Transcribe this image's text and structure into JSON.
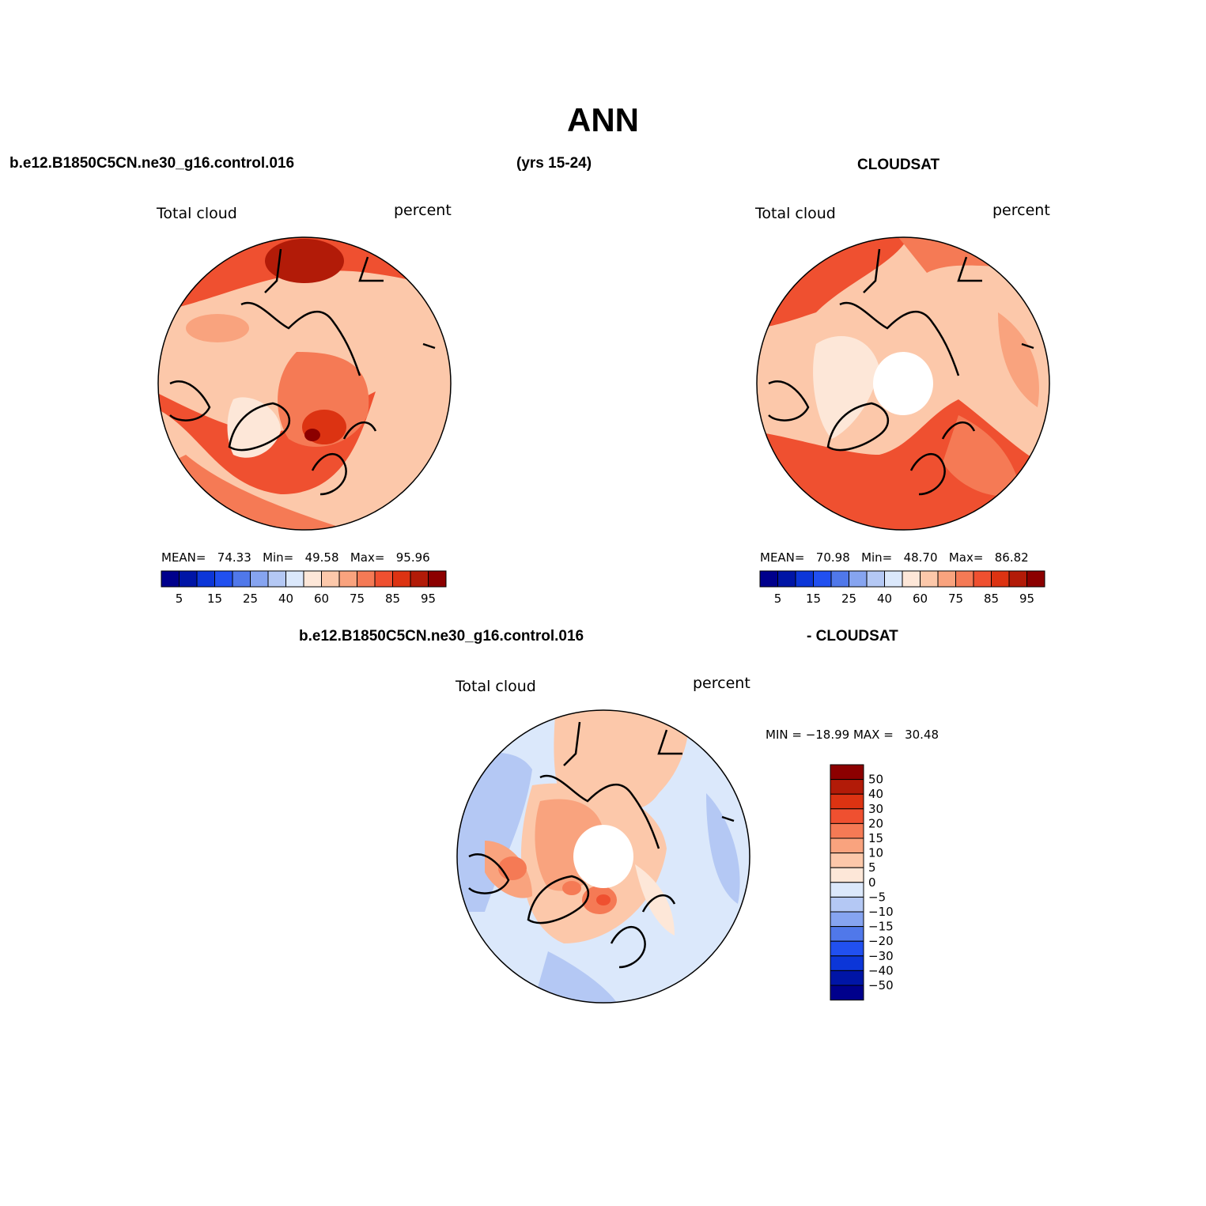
{
  "title": "ANN",
  "header": {
    "case_name": "b.e12.B1850C5CN.ne30_g16.control.016",
    "years": "(yrs 15-24)",
    "obs_name": "CLOUDSAT",
    "diff_case": "b.e12.B1850C5CN.ne30_g16.control.016",
    "diff_obs": "- CLOUDSAT"
  },
  "panels": [
    {
      "variable": "Total cloud",
      "units": "percent",
      "stats": {
        "mean_label": "MEAN=",
        "mean": "74.33",
        "min_label": "Min=",
        "min": "49.58",
        "max_label": "Max=",
        "max": "95.96"
      }
    },
    {
      "variable": "Total cloud",
      "units": "percent",
      "stats": {
        "mean_label": "MEAN=",
        "mean": "70.98",
        "min_label": "Min=",
        "min": "48.70",
        "max_label": "Max=",
        "max": "86.82"
      }
    },
    {
      "variable": "Total cloud",
      "units": "percent",
      "stats": {
        "text": "MIN = −18.99 MAX =   30.48"
      }
    }
  ],
  "colorbar_abs": {
    "colors": [
      "#00008c",
      "#0015a6",
      "#0c36d8",
      "#2150f0",
      "#5078ea",
      "#86a4f0",
      "#b4c8f4",
      "#dbe8fb",
      "#fde7d8",
      "#fcc8aa",
      "#f9a37e",
      "#f57a55",
      "#ef5030",
      "#dc3312",
      "#b21b08",
      "#8c0000"
    ],
    "tick_labels": [
      "5",
      "15",
      "25",
      "40",
      "60",
      "75",
      "85",
      "95"
    ]
  },
  "colorbar_diff": {
    "colors": [
      "#8c0000",
      "#b21b08",
      "#dc3312",
      "#ef5030",
      "#f57a55",
      "#f9a37e",
      "#fcc8aa",
      "#fde7d8",
      "#dbe8fb",
      "#b4c8f4",
      "#86a4f0",
      "#5078ea",
      "#2150f0",
      "#0c36d8",
      "#0015a6",
      "#00008c"
    ],
    "tick_labels": [
      "50",
      "40",
      "30",
      "20",
      "15",
      "10",
      "5",
      "0",
      "−5",
      "−10",
      "−15",
      "−20",
      "−30",
      "−40",
      "−50"
    ]
  }
}
